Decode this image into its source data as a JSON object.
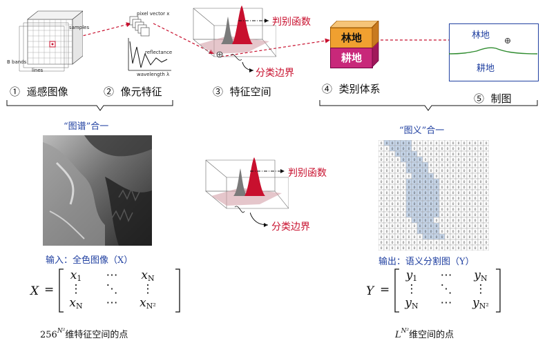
{
  "steps": [
    {
      "num": "①",
      "label": "遥感图像"
    },
    {
      "num": "②",
      "label": "像元特征"
    },
    {
      "num": "③",
      "label": "特征空间"
    },
    {
      "num": "④",
      "label": "类别体系"
    },
    {
      "num": "⑤",
      "label": "制图"
    }
  ],
  "cube_labels": {
    "samples": "samples",
    "bands": "B bands",
    "lines": "lines"
  },
  "pixel_labels": {
    "vector": "pixel vector x",
    "reflectance": "reflectance",
    "wavelength": "wavelength λ"
  },
  "feature": {
    "decision_func": "判别函数",
    "boundary": "分类边界"
  },
  "classes": {
    "forest": "林地",
    "farmland": "耕地"
  },
  "map": {
    "forest": "林地",
    "farmland": "耕地"
  },
  "captions": {
    "left_group": "“图谱”合一",
    "right_group": "“图义”合一"
  },
  "input": {
    "caption": "输入：全色图像（X）",
    "matrix_var": "X",
    "cells": [
      "x",
      "⋯",
      "x",
      "⋮",
      "⋱",
      "⋮",
      "x",
      "⋯",
      "x"
    ],
    "subs": [
      "1",
      "",
      "N",
      "",
      "",
      "",
      "N",
      "",
      "N²"
    ],
    "note_prefix": "256",
    "note_sup": "N²",
    "note_suffix": "维特征空间的点"
  },
  "output": {
    "caption": "输出：语义分割图（Y）",
    "matrix_var": "Y",
    "cells": [
      "y",
      "⋯",
      "y",
      "⋮",
      "⋱",
      "⋮",
      "y",
      "⋯",
      "y"
    ],
    "subs": [
      "1",
      "",
      "N",
      "",
      "",
      "",
      "N",
      "",
      "N²"
    ],
    "note_prefix": "L",
    "note_sup": "N²",
    "note_suffix": "维空间的点",
    "grid_value": "0"
  },
  "colors": {
    "red": "#c8102e",
    "blue": "#1f3fa0",
    "forest_block": "#f0a030",
    "farm_block": "#c8287a",
    "semantic_fill": "#c6d6ea"
  }
}
